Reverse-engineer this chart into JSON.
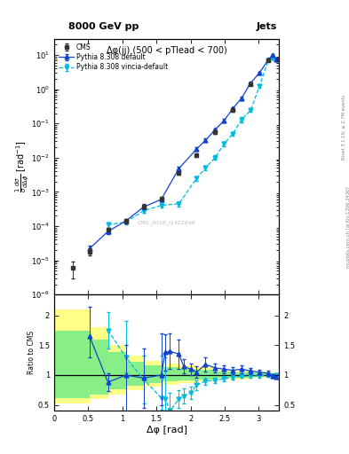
{
  "title_top": "8000 GeV pp",
  "title_right": "Jets",
  "subtitle": "Δφ(jj) (500 < pTlead < 700)",
  "watermark": "CMS_2016_I1421646",
  "right_label": "Rivet 3.1.10; ≥ 2.7M events",
  "right_label2": "mcplots.cern.ch [arXiv:1306.3436]",
  "xlabel": "Δφ [rad]",
  "ylabel_main": "$\\frac{1}{\\sigma}\\frac{d\\sigma}{d\\Delta\\phi}$ [rad$^{-1}$]",
  "ylabel_ratio": "Ratio to CMS",
  "xlim": [
    0,
    3.3
  ],
  "ylim_main": [
    1e-06,
    30
  ],
  "ylim_ratio": [
    0.4,
    2.35
  ],
  "cms_x": [
    0.27,
    0.52,
    0.79,
    1.05,
    1.31,
    1.57,
    1.83,
    2.09,
    2.36,
    2.62,
    2.88,
    3.14
  ],
  "cms_y": [
    6e-06,
    1.8e-05,
    8e-05,
    0.00014,
    0.00038,
    0.00065,
    0.0035,
    0.012,
    0.055,
    0.25,
    1.4,
    7.0
  ],
  "cms_yerr_lo": [
    3e-06,
    4e-06,
    1e-05,
    2e-05,
    5e-05,
    8e-05,
    0.0004,
    0.0015,
    0.006,
    0.025,
    0.12,
    0.5
  ],
  "cms_yerr_hi": [
    3e-06,
    4e-06,
    1e-05,
    2e-05,
    5e-05,
    8e-05,
    0.0004,
    0.0015,
    0.006,
    0.025,
    0.12,
    0.5
  ],
  "py_def_x": [
    0.52,
    0.79,
    1.05,
    1.31,
    1.57,
    1.83,
    2.09,
    2.22,
    2.36,
    2.49,
    2.62,
    2.75,
    2.88,
    3.01,
    3.14,
    3.2,
    3.25
  ],
  "py_def_y": [
    2.2e-05,
    7e-05,
    0.00014,
    0.00036,
    0.0006,
    0.0048,
    0.018,
    0.032,
    0.065,
    0.12,
    0.27,
    0.55,
    1.5,
    3.0,
    7.2,
    10.0,
    7.5
  ],
  "py_def_yerr": [
    5e-06,
    1e-05,
    2e-05,
    5e-05,
    8e-05,
    0.0005,
    0.002,
    0.004,
    0.007,
    0.013,
    0.028,
    0.05,
    0.13,
    0.25,
    0.5,
    0.7,
    0.6
  ],
  "py_vin_x": [
    0.79,
    1.05,
    1.31,
    1.57,
    1.83,
    2.09,
    2.22,
    2.36,
    2.49,
    2.62,
    2.75,
    2.88,
    3.01,
    3.14,
    3.2,
    3.25
  ],
  "py_vin_y": [
    0.00011,
    0.00013,
    0.00028,
    0.0004,
    0.00045,
    0.0025,
    0.005,
    0.01,
    0.025,
    0.05,
    0.13,
    0.24,
    1.2,
    7.0,
    8.0,
    7.0
  ],
  "py_vin_yerr": [
    2e-05,
    2e-05,
    4e-05,
    6e-05,
    7e-05,
    0.0004,
    0.0008,
    0.0015,
    0.004,
    0.006,
    0.02,
    0.025,
    0.12,
    0.5,
    0.6,
    0.5
  ],
  "ratio_py_def_x": [
    0.52,
    0.79,
    1.05,
    1.31,
    1.57,
    1.63,
    1.7,
    1.83,
    1.9,
    2.0,
    2.09,
    2.22,
    2.36,
    2.49,
    2.62,
    2.75,
    2.88,
    3.01,
    3.14,
    3.2,
    3.25
  ],
  "ratio_py_def_y": [
    1.65,
    0.88,
    1.0,
    0.95,
    1.0,
    1.38,
    1.4,
    1.35,
    1.15,
    1.1,
    1.05,
    1.18,
    1.12,
    1.1,
    1.08,
    1.1,
    1.07,
    1.05,
    1.03,
    0.98,
    0.97
  ],
  "ratio_py_def_yerr_lo": [
    0.35,
    0.15,
    0.7,
    0.5,
    0.5,
    0.3,
    0.3,
    0.25,
    0.12,
    0.1,
    0.1,
    0.12,
    0.08,
    0.07,
    0.06,
    0.07,
    0.05,
    0.04,
    0.04,
    0.03,
    0.03
  ],
  "ratio_py_def_yerr_hi": [
    0.5,
    0.15,
    0.5,
    0.5,
    0.7,
    0.3,
    0.3,
    0.25,
    0.12,
    0.1,
    0.1,
    0.12,
    0.08,
    0.07,
    0.06,
    0.07,
    0.05,
    0.04,
    0.04,
    0.03,
    0.03
  ],
  "ratio_py_vin_x": [
    0.79,
    1.05,
    1.31,
    1.57,
    1.63,
    1.7,
    1.83,
    1.9,
    2.0,
    2.09,
    2.22,
    2.36,
    2.49,
    2.62,
    2.75,
    2.88,
    3.01,
    3.14,
    3.2,
    3.25
  ],
  "ratio_py_vin_y": [
    1.75,
    1.3,
    0.93,
    0.62,
    0.6,
    0.4,
    0.6,
    0.65,
    0.7,
    0.83,
    0.9,
    0.91,
    0.94,
    0.96,
    0.98,
    0.98,
    0.99,
    1.0,
    0.99,
    1.0
  ],
  "ratio_py_vin_yerr_lo": [
    0.3,
    0.25,
    0.4,
    0.2,
    0.2,
    0.2,
    0.15,
    0.12,
    0.1,
    0.08,
    0.06,
    0.05,
    0.04,
    0.04,
    0.03,
    0.03,
    0.03,
    0.03,
    0.03,
    0.02
  ],
  "ratio_py_vin_yerr_hi": [
    0.3,
    0.6,
    0.4,
    0.7,
    0.7,
    0.3,
    0.15,
    0.12,
    0.1,
    0.08,
    0.06,
    0.05,
    0.04,
    0.04,
    0.03,
    0.03,
    0.03,
    0.03,
    0.03,
    0.02
  ],
  "band_yellow_edges": [
    0.0,
    0.26,
    0.52,
    0.79,
    1.05,
    1.31,
    1.57,
    1.83,
    2.09,
    2.36,
    2.62,
    2.88,
    3.14,
    3.3
  ],
  "band_yellow_lo": [
    0.52,
    0.52,
    0.6,
    0.68,
    0.75,
    0.8,
    0.83,
    0.86,
    0.89,
    0.92,
    0.93,
    0.95,
    0.96,
    0.97
  ],
  "band_yellow_hi": [
    2.1,
    2.1,
    1.8,
    1.5,
    1.32,
    1.24,
    1.2,
    1.16,
    1.13,
    1.09,
    1.07,
    1.06,
    1.04,
    1.03
  ],
  "band_green_edges": [
    0.0,
    0.26,
    0.52,
    0.79,
    1.05,
    1.31,
    1.57,
    1.83,
    2.09,
    2.36,
    2.62,
    2.88,
    3.14,
    3.3
  ],
  "band_green_lo": [
    0.62,
    0.62,
    0.68,
    0.76,
    0.82,
    0.86,
    0.89,
    0.91,
    0.93,
    0.95,
    0.96,
    0.97,
    0.98,
    0.98
  ],
  "band_green_hi": [
    1.75,
    1.75,
    1.6,
    1.38,
    1.22,
    1.17,
    1.14,
    1.11,
    1.09,
    1.06,
    1.05,
    1.04,
    1.03,
    1.02
  ],
  "color_cms": "#333333",
  "color_py_def": "#1144cc",
  "color_py_vin": "#00bbdd",
  "color_yellow": "#ffff88",
  "color_green": "#88ee88"
}
